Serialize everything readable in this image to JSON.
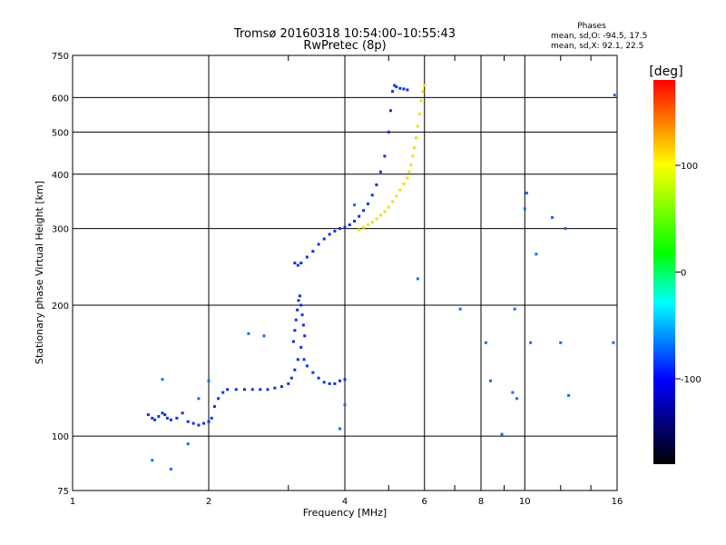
{
  "chart_data": {
    "type": "scatter",
    "title": "Tromsø 20160318 10:54:00–10:55:43",
    "subtitle": "RwPretec (8p)",
    "xlabel": "Frequency [MHz]",
    "ylabel": "Stationary phase Virtual Height [km]",
    "x_scale": "log",
    "y_scale": "log",
    "xlim": [
      1,
      16
    ],
    "ylim": [
      75,
      750
    ],
    "x_ticks": [
      1,
      2,
      4,
      6,
      8,
      10,
      16
    ],
    "x_tick_labels": [
      "1",
      "2",
      "4",
      "6",
      "8",
      "10",
      "16"
    ],
    "x_gridlines": [
      2,
      4,
      6,
      8,
      10
    ],
    "x_minor_ticks": [
      3,
      5,
      7,
      9,
      12,
      14
    ],
    "y_ticks": [
      75,
      100,
      200,
      300,
      400,
      500,
      600,
      750
    ],
    "y_tick_labels": [
      "75",
      "100",
      "200",
      "300",
      "400",
      "500",
      "600",
      "750"
    ],
    "y_gridlines": [
      100,
      200,
      300,
      400,
      500,
      600
    ],
    "grid": true,
    "stats": {
      "header": "Phases",
      "line_o": "mean, sd,O: -94.5, 17.5",
      "line_x": "mean, sd,X:  92.1, 22.5"
    },
    "colorbar": {
      "label": "[deg]",
      "range": [
        -180,
        180
      ],
      "ticks": [
        100,
        0,
        -100
      ],
      "tick_labels": [
        "100",
        "0",
        "-100"
      ],
      "colormap": [
        "#ff0000",
        "#ffff00",
        "#00ff00",
        "#00ffff",
        "#0000ff",
        "#000000"
      ]
    },
    "series": [
      {
        "trace": "low-E-Es",
        "x": [
          1.47,
          1.5,
          1.52,
          1.55,
          1.58,
          1.6,
          1.62,
          1.65,
          1.7,
          1.75,
          1.8,
          1.85,
          1.9,
          1.95,
          2.0,
          2.03,
          2.06,
          2.1,
          2.15,
          2.2,
          2.3,
          2.4,
          2.5,
          2.6,
          2.7,
          2.8,
          2.9,
          3.0,
          3.05,
          3.1,
          3.15,
          3.2,
          3.25,
          3.3,
          3.4,
          3.5,
          3.6,
          3.7,
          3.8,
          3.9,
          4.0
        ],
        "y": [
          112,
          110,
          109,
          111,
          113,
          112,
          110,
          109,
          110,
          113,
          108,
          107,
          106,
          107,
          108,
          110,
          117,
          122,
          126,
          128,
          128,
          128,
          128,
          128,
          128,
          129,
          130,
          132,
          136,
          142,
          150,
          160,
          150,
          145,
          140,
          136,
          133,
          132,
          132,
          134,
          135
        ],
        "phase": -100
      },
      {
        "trace": "es-spike",
        "x": [
          3.08,
          3.1,
          3.12,
          3.14,
          3.16,
          3.18,
          3.2,
          3.22,
          3.24,
          3.26
        ],
        "y": [
          165,
          175,
          185,
          195,
          205,
          210,
          200,
          190,
          180,
          170
        ],
        "phase": -90
      },
      {
        "trace": "F-O-mode",
        "x": [
          3.1,
          3.15,
          3.2,
          3.3,
          3.4,
          3.5,
          3.6,
          3.7,
          3.8,
          3.9,
          4.0,
          4.1,
          4.2,
          4.3,
          4.4,
          4.5,
          4.6,
          4.7,
          4.8,
          4.9,
          5.0,
          5.05,
          5.1,
          5.15,
          5.2,
          5.3,
          5.4,
          5.5
        ],
        "y": [
          250,
          247,
          250,
          258,
          266,
          276,
          284,
          291,
          296,
          300,
          302,
          306,
          312,
          320,
          330,
          342,
          358,
          378,
          405,
          440,
          500,
          560,
          620,
          640,
          635,
          630,
          628,
          625
        ],
        "phase": -100
      },
      {
        "trace": "F-X-mode",
        "x": [
          4.3,
          4.4,
          4.5,
          4.6,
          4.7,
          4.8,
          4.9,
          5.0,
          5.1,
          5.2,
          5.3,
          5.4,
          5.5,
          5.55,
          5.6,
          5.65,
          5.7,
          5.75,
          5.8,
          5.85,
          5.9,
          5.95,
          6.0
        ],
        "y": [
          298,
          302,
          306,
          310,
          316,
          322,
          328,
          336,
          346,
          356,
          368,
          380,
          392,
          405,
          420,
          440,
          460,
          485,
          515,
          550,
          590,
          620,
          640
        ],
        "phase": 110
      },
      {
        "trace": "scattered",
        "x": [
          1.5,
          1.58,
          1.65,
          1.8,
          1.9,
          2.0,
          2.45,
          2.65,
          3.9,
          4.0,
          4.2,
          5.8,
          7.2,
          8.2,
          8.4,
          8.9,
          9.4,
          9.5,
          9.6,
          10.0,
          10.1,
          10.3,
          10.6,
          11.5,
          12.0,
          12.3,
          12.5,
          15.7,
          15.8
        ],
        "y": [
          88,
          135,
          84,
          96,
          122,
          134,
          172,
          170,
          104,
          118,
          340,
          230,
          196,
          164,
          134,
          101,
          126,
          196,
          122,
          333,
          362,
          164,
          262,
          318,
          164,
          300,
          124,
          164,
          608
        ],
        "phase": -60
      }
    ]
  }
}
